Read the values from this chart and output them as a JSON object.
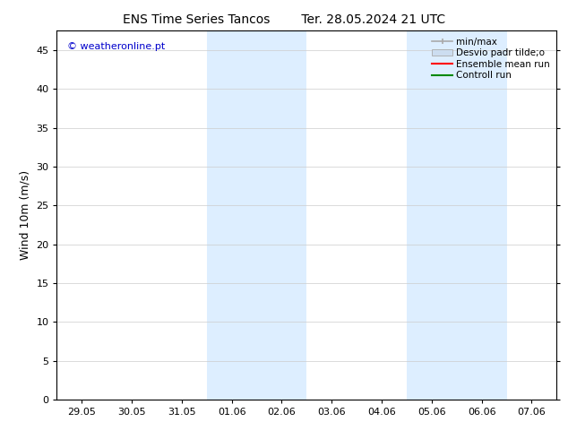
{
  "title_left": "ENS Time Series Tancos",
  "title_right": "Ter. 28.05.2024 21 UTC",
  "ylabel": "Wind 10m (m/s)",
  "ylim": [
    0,
    47.5
  ],
  "yticks": [
    0,
    5,
    10,
    15,
    20,
    25,
    30,
    35,
    40,
    45
  ],
  "xtick_labels": [
    "29.05",
    "30.05",
    "31.05",
    "01.06",
    "02.06",
    "03.06",
    "04.06",
    "05.06",
    "06.06",
    "07.06"
  ],
  "xtick_positions": [
    0,
    1,
    2,
    3,
    4,
    5,
    6,
    7,
    8,
    9
  ],
  "xlim": [
    -0.5,
    9.5
  ],
  "shaded_regions": [
    {
      "x_start": 2.5,
      "x_end": 4.5
    },
    {
      "x_start": 6.5,
      "x_end": 8.5
    }
  ],
  "shaded_color": "#ddeeff",
  "watermark_text": "© weatheronline.pt",
  "watermark_color": "#0000cc",
  "legend_labels": [
    "min/max",
    "Desvio padr tilde;o",
    "Ensemble mean run",
    "Controll run"
  ],
  "legend_colors": [
    "#aaaaaa",
    "#ccddf0",
    "#ff0000",
    "#008800"
  ],
  "background_color": "#ffffff",
  "title_fontsize": 10,
  "axis_label_fontsize": 9,
  "tick_fontsize": 8,
  "legend_fontsize": 7.5
}
